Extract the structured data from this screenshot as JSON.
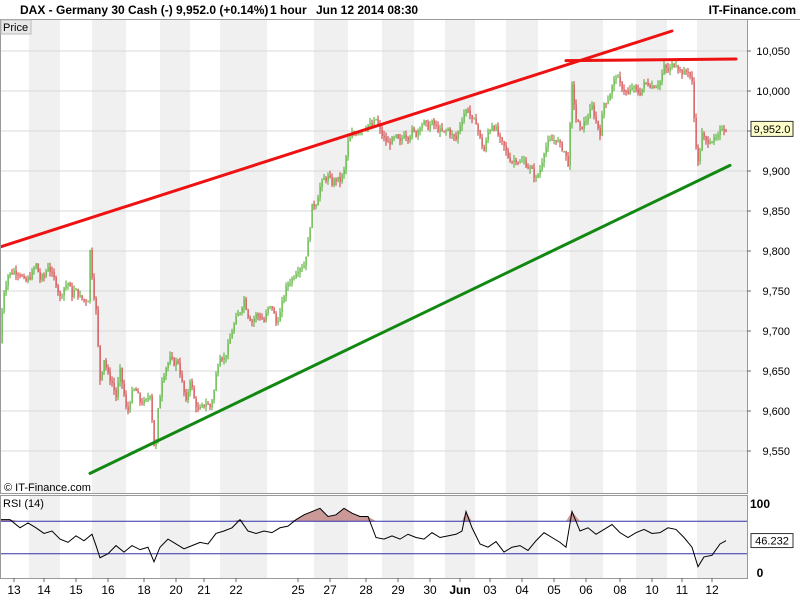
{
  "header": {
    "symbol": "DAX - Germany 30 Cash (-)",
    "quote": "9,952.0 (+0.14%)",
    "timeframe": "1 hour",
    "datetime": "Jun 12 2014 08:30",
    "brand": "IT-Finance.com"
  },
  "price_tab_label": "Price",
  "watermark": "© IT-Finance.com",
  "rsi_label": "RSI (14)",
  "colors": {
    "up_candle": "#44aa22",
    "down_candle": "#cc3333",
    "resistance_line": "#ee1111",
    "support_line": "#118811",
    "rsi_line": "#000000",
    "rsi_band": "#3333aa",
    "overbought_fill": "#cc9999",
    "badge_bg": "#ffffcc"
  },
  "chart_data": [
    {
      "type": "candlestick",
      "title": "DAX - Germany 30 Cash (-)",
      "interval": "1 hour",
      "last_price": 9952.0,
      "last_price_label": "9,952.0",
      "change_pct": 0.14,
      "y_ticks": [
        9550,
        9600,
        9650,
        9700,
        9750,
        9800,
        9850,
        9900,
        9950,
        10000,
        10050
      ],
      "y_tick_labels": [
        "9,550",
        "9,600",
        "9,650",
        "9,700",
        "9,750",
        "9,800",
        "9,850",
        "9,900",
        "9,950",
        "10,000",
        "10,050"
      ],
      "ylim": [
        9530,
        10070
      ],
      "x_tick_labels": [
        "13",
        "14",
        "15",
        "16",
        "18",
        "20",
        "21",
        "22",
        "25",
        "27",
        "28",
        "29",
        "30",
        "Jun",
        "03",
        "04",
        "05",
        "06",
        "08",
        "10",
        "11",
        "12"
      ],
      "price_path": [
        [
          0,
          9685
        ],
        [
          3,
          9745
        ],
        [
          8,
          9770
        ],
        [
          14,
          9775
        ],
        [
          20,
          9772
        ],
        [
          25,
          9760
        ],
        [
          31,
          9770
        ],
        [
          36,
          9783
        ],
        [
          40,
          9765
        ],
        [
          44,
          9768
        ],
        [
          48,
          9782
        ],
        [
          52,
          9770
        ],
        [
          56,
          9760
        ],
        [
          60,
          9742
        ],
        [
          64,
          9755
        ],
        [
          68,
          9760
        ],
        [
          72,
          9745
        ],
        [
          75,
          9752
        ],
        [
          80,
          9742
        ],
        [
          84,
          9738
        ],
        [
          88,
          9740
        ],
        [
          90,
          9800
        ],
        [
          93,
          9755
        ],
        [
          96,
          9725
        ],
        [
          98,
          9680
        ],
        [
          100,
          9640
        ],
        [
          104,
          9665
        ],
        [
          108,
          9645
        ],
        [
          112,
          9635
        ],
        [
          116,
          9618
        ],
        [
          120,
          9650
        ],
        [
          124,
          9620
        ],
        [
          127,
          9595
        ],
        [
          131,
          9620
        ],
        [
          135,
          9628
        ],
        [
          140,
          9612
        ],
        [
          145,
          9610
        ],
        [
          150,
          9622
        ],
        [
          153,
          9575
        ],
        [
          155,
          9540
        ],
        [
          158,
          9600
        ],
        [
          162,
          9640
        ],
        [
          166,
          9655
        ],
        [
          170,
          9665
        ],
        [
          174,
          9660
        ],
        [
          178,
          9662
        ],
        [
          182,
          9635
        ],
        [
          186,
          9610
        ],
        [
          190,
          9640
        ],
        [
          194,
          9615
        ],
        [
          198,
          9600
        ],
        [
          202,
          9605
        ],
        [
          206,
          9610
        ],
        [
          210,
          9605
        ],
        [
          214,
          9625
        ],
        [
          217,
          9655
        ],
        [
          220,
          9670
        ],
        [
          224,
          9665
        ],
        [
          228,
          9680
        ],
        [
          232,
          9700
        ],
        [
          236,
          9715
        ],
        [
          240,
          9725
        ],
        [
          244,
          9740
        ],
        [
          248,
          9720
        ],
        [
          252,
          9712
        ],
        [
          256,
          9720
        ],
        [
          260,
          9718
        ],
        [
          264,
          9712
        ],
        [
          268,
          9728
        ],
        [
          272,
          9730
        ],
        [
          276,
          9710
        ],
        [
          280,
          9722
        ],
        [
          284,
          9745
        ],
        [
          288,
          9760
        ],
        [
          292,
          9765
        ],
        [
          296,
          9775
        ],
        [
          300,
          9780
        ],
        [
          304,
          9782
        ],
        [
          308,
          9810
        ],
        [
          312,
          9855
        ],
        [
          316,
          9860
        ],
        [
          320,
          9880
        ],
        [
          324,
          9890
        ],
        [
          328,
          9892
        ],
        [
          332,
          9885
        ],
        [
          336,
          9890
        ],
        [
          340,
          9888
        ],
        [
          344,
          9900
        ],
        [
          348,
          9935
        ],
        [
          352,
          9945
        ],
        [
          356,
          9948
        ],
        [
          360,
          9952
        ],
        [
          364,
          9954
        ],
        [
          368,
          9958
        ],
        [
          372,
          9956
        ],
        [
          376,
          9965
        ],
        [
          380,
          9950
        ],
        [
          384,
          9940
        ],
        [
          388,
          9935
        ],
        [
          392,
          9938
        ],
        [
          396,
          9942
        ],
        [
          400,
          9935
        ],
        [
          404,
          9948
        ],
        [
          408,
          9942
        ],
        [
          412,
          9950
        ],
        [
          416,
          9946
        ],
        [
          420,
          9958
        ],
        [
          424,
          9960
        ],
        [
          428,
          9955
        ],
        [
          432,
          9960
        ],
        [
          436,
          9955
        ],
        [
          440,
          9950
        ],
        [
          444,
          9948
        ],
        [
          448,
          9952
        ],
        [
          452,
          9944
        ],
        [
          456,
          9940
        ],
        [
          460,
          9958
        ],
        [
          464,
          9972
        ],
        [
          468,
          9978
        ],
        [
          472,
          9962
        ],
        [
          476,
          9962
        ],
        [
          480,
          9940
        ],
        [
          484,
          9925
        ],
        [
          488,
          9948
        ],
        [
          492,
          9958
        ],
        [
          496,
          9952
        ],
        [
          500,
          9938
        ],
        [
          504,
          9930
        ],
        [
          508,
          9918
        ],
        [
          512,
          9912
        ],
        [
          516,
          9915
        ],
        [
          520,
          9910
        ],
        [
          524,
          9912
        ],
        [
          528,
          9905
        ],
        [
          532,
          9900
        ],
        [
          536,
          9890
        ],
        [
          540,
          9902
        ],
        [
          544,
          9925
        ],
        [
          548,
          9935
        ],
        [
          552,
          9938
        ],
        [
          556,
          9940
        ],
        [
          560,
          9932
        ],
        [
          564,
          9925
        ],
        [
          568,
          9910
        ],
        [
          570,
          9955
        ],
        [
          572,
          10005
        ],
        [
          576,
          9965
        ],
        [
          580,
          9952
        ],
        [
          584,
          9960
        ],
        [
          588,
          9968
        ],
        [
          592,
          9980
        ],
        [
          596,
          9962
        ],
        [
          600,
          9948
        ],
        [
          604,
          9985
        ],
        [
          608,
          9990
        ],
        [
          612,
          10005
        ],
        [
          616,
          10020
        ],
        [
          620,
          10008
        ],
        [
          624,
          10002
        ],
        [
          628,
          9995
        ],
        [
          632,
          10005
        ],
        [
          636,
          10000
        ],
        [
          640,
          9998
        ],
        [
          644,
          10008
        ],
        [
          648,
          10010
        ],
        [
          652,
          10006
        ],
        [
          656,
          10008
        ],
        [
          660,
          10012
        ],
        [
          664,
          10030
        ],
        [
          668,
          10025
        ],
        [
          672,
          10032
        ],
        [
          676,
          10035
        ],
        [
          680,
          10025
        ],
        [
          684,
          10022
        ],
        [
          688,
          10026
        ],
        [
          692,
          10010
        ],
        [
          695,
          9945
        ],
        [
          698,
          9910
        ],
        [
          702,
          9945
        ],
        [
          706,
          9936
        ],
        [
          710,
          9940
        ],
        [
          714,
          9938
        ],
        [
          718,
          9942
        ],
        [
          722,
          9955
        ],
        [
          726,
          9952
        ]
      ],
      "resistance_trendline": [
        [
          0,
          9805
        ],
        [
          672,
          10075
        ]
      ],
      "resistance_top": [
        [
          566,
          10038
        ],
        [
          736,
          10040
        ]
      ],
      "support_trendline": [
        [
          90,
          9522
        ],
        [
          730,
          9907
        ]
      ]
    },
    {
      "type": "line",
      "title": "RSI (14)",
      "y_ticks": [
        0,
        100
      ],
      "y_tick_labels": [
        "0",
        "100"
      ],
      "bands": [
        70,
        30
      ],
      "last_value": 46.232,
      "last_value_label": "46.232",
      "ylim": [
        0,
        100
      ],
      "values": [
        [
          0,
          72
        ],
        [
          10,
          72
        ],
        [
          20,
          62
        ],
        [
          28,
          68
        ],
        [
          36,
          62
        ],
        [
          44,
          55
        ],
        [
          52,
          58
        ],
        [
          60,
          48
        ],
        [
          68,
          44
        ],
        [
          76,
          52
        ],
        [
          84,
          46
        ],
        [
          92,
          54
        ],
        [
          96,
          40
        ],
        [
          100,
          25
        ],
        [
          108,
          30
        ],
        [
          116,
          40
        ],
        [
          124,
          32
        ],
        [
          132,
          40
        ],
        [
          140,
          35
        ],
        [
          148,
          38
        ],
        [
          154,
          20
        ],
        [
          160,
          38
        ],
        [
          168,
          48
        ],
        [
          176,
          42
        ],
        [
          184,
          36
        ],
        [
          192,
          40
        ],
        [
          200,
          44
        ],
        [
          208,
          42
        ],
        [
          216,
          55
        ],
        [
          224,
          58
        ],
        [
          232,
          62
        ],
        [
          240,
          72
        ],
        [
          248,
          58
        ],
        [
          256,
          55
        ],
        [
          264,
          58
        ],
        [
          272,
          56
        ],
        [
          280,
          62
        ],
        [
          288,
          64
        ],
        [
          296,
          72
        ],
        [
          304,
          78
        ],
        [
          312,
          82
        ],
        [
          320,
          86
        ],
        [
          328,
          76
        ],
        [
          336,
          78
        ],
        [
          344,
          86
        ],
        [
          352,
          80
        ],
        [
          360,
          76
        ],
        [
          368,
          76
        ],
        [
          376,
          50
        ],
        [
          384,
          48
        ],
        [
          392,
          52
        ],
        [
          400,
          48
        ],
        [
          408,
          54
        ],
        [
          416,
          50
        ],
        [
          424,
          48
        ],
        [
          432,
          56
        ],
        [
          440,
          50
        ],
        [
          448,
          52
        ],
        [
          456,
          54
        ],
        [
          462,
          58
        ],
        [
          466,
          82
        ],
        [
          472,
          62
        ],
        [
          480,
          42
        ],
        [
          488,
          38
        ],
        [
          496,
          45
        ],
        [
          504,
          32
        ],
        [
          512,
          38
        ],
        [
          520,
          40
        ],
        [
          528,
          34
        ],
        [
          536,
          46
        ],
        [
          544,
          56
        ],
        [
          552,
          50
        ],
        [
          560,
          44
        ],
        [
          566,
          38
        ],
        [
          572,
          82
        ],
        [
          580,
          58
        ],
        [
          588,
          62
        ],
        [
          596,
          54
        ],
        [
          604,
          60
        ],
        [
          612,
          66
        ],
        [
          620,
          56
        ],
        [
          628,
          50
        ],
        [
          636,
          56
        ],
        [
          644,
          60
        ],
        [
          652,
          55
        ],
        [
          660,
          56
        ],
        [
          668,
          62
        ],
        [
          676,
          60
        ],
        [
          684,
          50
        ],
        [
          692,
          38
        ],
        [
          698,
          14
        ],
        [
          704,
          26
        ],
        [
          712,
          28
        ],
        [
          720,
          42
        ],
        [
          726,
          46
        ]
      ]
    }
  ]
}
